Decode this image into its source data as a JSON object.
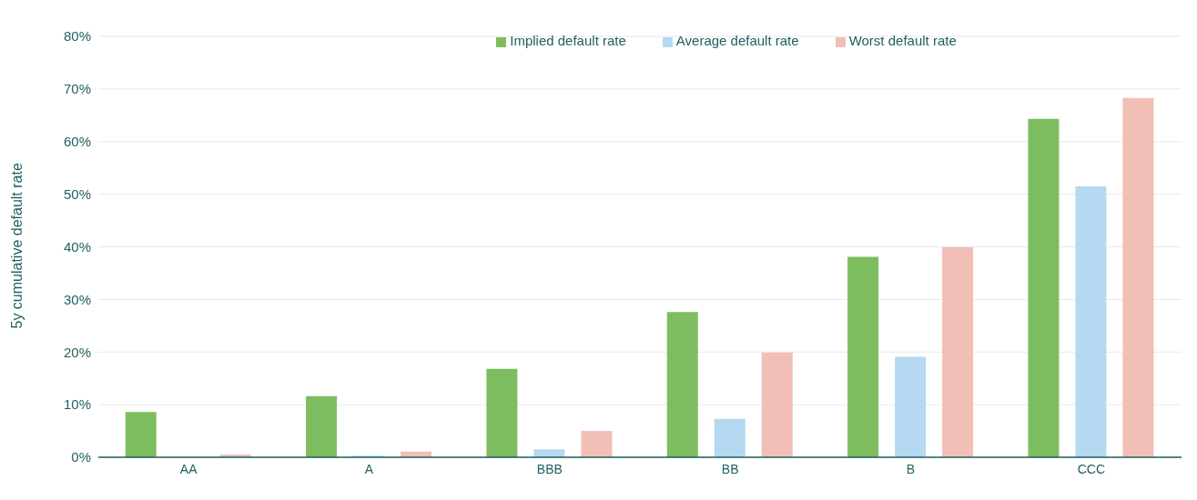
{
  "chart_data": {
    "type": "bar",
    "ylabel": "5y cumulative default rate",
    "categories": [
      "AA",
      "A",
      "BBB",
      "BB",
      "B",
      "CCC"
    ],
    "series": [
      {
        "name": "Implied default rate",
        "color": "#7dbd5f",
        "values": [
          8.6,
          11.6,
          16.8,
          27.6,
          38.1,
          64.3
        ]
      },
      {
        "name": "Average default rate",
        "color": "#b4d9f0",
        "values": [
          0,
          0.3,
          1.5,
          7.3,
          19.1,
          51.5
        ]
      },
      {
        "name": "Worst default rate",
        "color": "#f2bfb6",
        "values": [
          0.5,
          1.1,
          5.0,
          19.9,
          39.9,
          68.3
        ]
      }
    ],
    "ylim": [
      0,
      80
    ],
    "yticks": [
      {
        "value": 0,
        "label": "0%"
      },
      {
        "value": 10,
        "label": "10%"
      },
      {
        "value": 20,
        "label": "20%"
      },
      {
        "value": 30,
        "label": "30%"
      },
      {
        "value": 40,
        "label": "40%"
      },
      {
        "value": 50,
        "label": "50%"
      },
      {
        "value": 60,
        "label": "60%"
      },
      {
        "value": 70,
        "label": "70%"
      },
      {
        "value": 80,
        "label": "80%"
      }
    ],
    "grid": "y",
    "legend": "top"
  }
}
